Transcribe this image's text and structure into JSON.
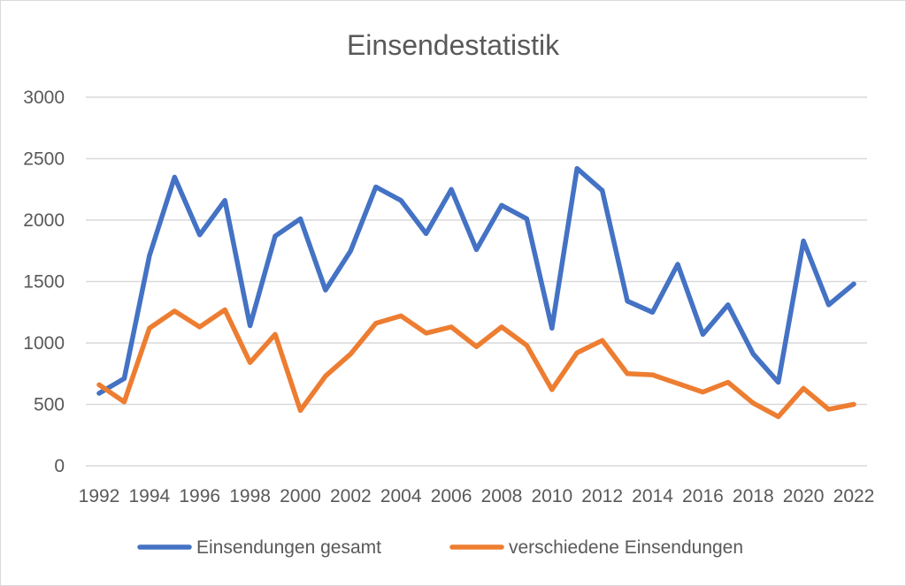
{
  "chart_data": {
    "type": "line",
    "title": "Einsendestatistik",
    "xlabel": "",
    "ylabel": "",
    "x": [
      1992,
      1993,
      1994,
      1995,
      1996,
      1997,
      1998,
      1999,
      2000,
      2001,
      2002,
      2003,
      2004,
      2005,
      2006,
      2007,
      2008,
      2009,
      2010,
      2011,
      2012,
      2013,
      2014,
      2015,
      2016,
      2017,
      2018,
      2019,
      2020,
      2021,
      2022
    ],
    "x_tick_labels": [
      "1992",
      "1994",
      "1996",
      "1998",
      "2000",
      "2002",
      "2004",
      "2006",
      "2008",
      "2010",
      "2012",
      "2014",
      "2016",
      "2018",
      "2020",
      "2022"
    ],
    "y_tick_labels": [
      "0",
      "500",
      "1000",
      "1500",
      "2000",
      "2500",
      "3000"
    ],
    "ylim": [
      0,
      3000
    ],
    "grid": true,
    "legend_position": "bottom",
    "series": [
      {
        "name": "Einsendungen gesamt",
        "color": "#4472C4",
        "values": [
          590,
          710,
          1710,
          2350,
          1880,
          2160,
          1140,
          1870,
          2010,
          1430,
          1750,
          2270,
          2160,
          1890,
          2250,
          1760,
          2120,
          2010,
          1120,
          2420,
          2240,
          1340,
          1250,
          1640,
          1070,
          1310,
          910,
          680,
          1830,
          1310,
          1480
        ]
      },
      {
        "name": "verschiedene Einsendungen",
        "color": "#ED7D31",
        "values": [
          660,
          520,
          1120,
          1260,
          1130,
          1270,
          840,
          1070,
          450,
          730,
          910,
          1160,
          1220,
          1080,
          1130,
          970,
          1130,
          980,
          620,
          920,
          1020,
          750,
          740,
          670,
          600,
          680,
          510,
          400,
          630,
          460,
          500
        ]
      }
    ]
  }
}
